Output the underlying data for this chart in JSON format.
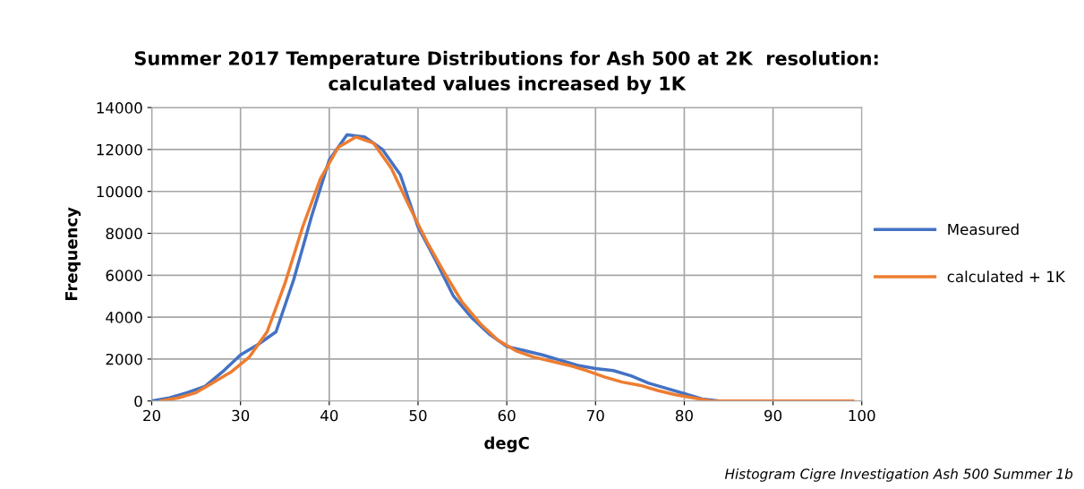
{
  "chart_data": {
    "type": "line",
    "title": "Summer 2017 Temperature Distributions for Ash 500 at 2K  resolution:\ncalculated values increased by 1K",
    "xlabel": "degC",
    "ylabel": "Frequency",
    "annotations": [
      "Histogram Cigre Investigation Ash 500 Summer 1b"
    ],
    "xlim": [
      20,
      100
    ],
    "xticks": [
      20,
      30,
      40,
      50,
      60,
      70,
      80,
      90,
      100
    ],
    "ylim": [
      0,
      14000
    ],
    "yticks": [
      0,
      2000,
      4000,
      6000,
      8000,
      10000,
      12000,
      14000
    ],
    "grid": true,
    "legend": "right",
    "series": [
      {
        "name": "Measured",
        "color": "#4472c4",
        "x": [
          20,
          22,
          24,
          26,
          28,
          30,
          32,
          34,
          36,
          38,
          40,
          42,
          44,
          46,
          48,
          50,
          52,
          54,
          56,
          58,
          60,
          62,
          64,
          66,
          68,
          70,
          72,
          74,
          76,
          78,
          80,
          82,
          84
        ],
        "values": [
          0,
          150,
          400,
          700,
          1400,
          2200,
          2700,
          3300,
          5800,
          8800,
          11500,
          12700,
          12600,
          12000,
          10800,
          8300,
          6700,
          5000,
          4000,
          3200,
          2600,
          2400,
          2200,
          1950,
          1700,
          1550,
          1450,
          1200,
          850,
          600,
          350,
          100,
          0
        ]
      },
      {
        "name": "calculated + 1K",
        "color": "#ed7d31",
        "x": [
          21,
          23,
          25,
          27,
          29,
          31,
          33,
          35,
          37,
          39,
          41,
          43,
          45,
          47,
          49,
          51,
          53,
          55,
          57,
          59,
          61,
          63,
          65,
          67,
          69,
          71,
          73,
          75,
          77,
          79,
          81,
          83,
          85,
          87,
          89,
          91,
          93,
          95,
          97,
          99
        ],
        "values": [
          0,
          150,
          400,
          900,
          1400,
          2100,
          3300,
          5600,
          8300,
          10600,
          12100,
          12600,
          12300,
          11100,
          9300,
          7600,
          6100,
          4700,
          3700,
          2900,
          2400,
          2100,
          1900,
          1700,
          1450,
          1150,
          900,
          750,
          500,
          300,
          150,
          0,
          0,
          0,
          0,
          0,
          0,
          0,
          0,
          0
        ]
      }
    ]
  }
}
